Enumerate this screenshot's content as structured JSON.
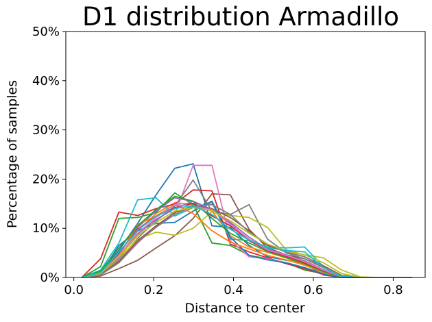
{
  "chart_data": {
    "type": "line",
    "title": "D1 distribution Armadillo",
    "xlabel": "Distance to center",
    "ylabel": "Percentage of samples",
    "xlim": [
      -0.02,
      0.88
    ],
    "ylim": [
      0,
      50
    ],
    "xticks": [
      0.0,
      0.2,
      0.4,
      0.6,
      0.8
    ],
    "xtick_labels": [
      "0.0",
      "0.2",
      "0.4",
      "0.6",
      "0.8"
    ],
    "yticks": [
      0,
      10,
      20,
      30,
      40,
      50
    ],
    "ytick_labels": [
      "0%",
      "10%",
      "20%",
      "30%",
      "40%",
      "50%"
    ],
    "grid": false,
    "legend": "none",
    "x": [
      0.02,
      0.067,
      0.113,
      0.16,
      0.206,
      0.253,
      0.299,
      0.346,
      0.392,
      0.439,
      0.485,
      0.532,
      0.578,
      0.625,
      0.671,
      0.718,
      0.764,
      0.811,
      0.848
    ],
    "series": [
      {
        "color": "#1f77b4",
        "values": [
          0,
          1.2,
          5.5,
          11,
          16.8,
          22.2,
          23.1,
          10.5,
          10.2,
          6.5,
          4.2,
          3.5,
          2.8,
          0.5,
          0,
          0,
          0,
          0,
          0
        ]
      },
      {
        "color": "#ff7f0e",
        "values": [
          0,
          0.8,
          4.2,
          9.5,
          13,
          15.2,
          14.8,
          13.5,
          8.5,
          6.2,
          5.1,
          4,
          2.5,
          1.2,
          0.2,
          0,
          0,
          0,
          0
        ]
      },
      {
        "color": "#2ca02c",
        "values": [
          0,
          2.2,
          12,
          12.2,
          13.2,
          17.2,
          14.8,
          7,
          6.5,
          4.5,
          3.8,
          3,
          1.5,
          0.8,
          0,
          0,
          0,
          0,
          0
        ]
      },
      {
        "color": "#d62728",
        "values": [
          0,
          3.8,
          13.3,
          12.6,
          14,
          14.9,
          17.8,
          17.6,
          6.8,
          5.2,
          4,
          2.8,
          1.8,
          0.6,
          0,
          0,
          0,
          0,
          0
        ]
      },
      {
        "color": "#9467bd",
        "values": [
          0,
          1,
          4.8,
          10.2,
          13.5,
          16.2,
          15.5,
          13.8,
          11,
          7.5,
          5.5,
          4.2,
          3.2,
          1.5,
          0.2,
          0,
          0,
          0,
          0
        ]
      },
      {
        "color": "#8c564b",
        "values": [
          0,
          0.3,
          1.8,
          3.5,
          6,
          8.5,
          12,
          17,
          16.8,
          9.8,
          6,
          4.6,
          3.8,
          2,
          0.3,
          0,
          0,
          0,
          0
        ]
      },
      {
        "color": "#e377c2",
        "values": [
          0,
          0.6,
          3,
          7,
          10.5,
          12.8,
          22.8,
          22.8,
          7.5,
          4.2,
          3.8,
          3,
          2,
          0.8,
          0,
          0,
          0,
          0,
          0
        ]
      },
      {
        "color": "#7f7f7f",
        "values": [
          0,
          0.5,
          3.5,
          8,
          11.5,
          14.5,
          19.8,
          13.5,
          12.8,
          14.8,
          7.8,
          5,
          3.8,
          2,
          0.2,
          0,
          0,
          0,
          0
        ]
      },
      {
        "color": "#bcbd22",
        "values": [
          0,
          0.7,
          3.8,
          7.8,
          9.2,
          8.6,
          10,
          13.4,
          12.6,
          12.2,
          10.2,
          5.6,
          4.6,
          4,
          1.5,
          0.1,
          0,
          0,
          0
        ]
      },
      {
        "color": "#17becf",
        "values": [
          0,
          1.5,
          7,
          15.8,
          16.2,
          12.5,
          14.2,
          15.2,
          7.8,
          7.5,
          6.2,
          6,
          6.2,
          2.2,
          0.3,
          0,
          0,
          0,
          0
        ]
      },
      {
        "color": "#1f77b4",
        "values": [
          0,
          0.8,
          6.5,
          9.5,
          11,
          11.2,
          13.5,
          15.5,
          8.2,
          4.5,
          3.6,
          3,
          2,
          0.7,
          0,
          0,
          0,
          0,
          0
        ]
      },
      {
        "color": "#ff7f0e",
        "values": [
          0,
          0.9,
          4.5,
          10.8,
          12.5,
          14.8,
          13,
          9.5,
          7.2,
          5.8,
          4.5,
          3.6,
          2.5,
          1,
          0.1,
          0,
          0,
          0,
          0
        ]
      },
      {
        "color": "#2ca02c",
        "values": [
          0,
          1.3,
          6,
          10.5,
          13.8,
          16.5,
          15.5,
          12,
          9,
          7,
          5.3,
          4,
          2.8,
          1.2,
          0.1,
          0,
          0,
          0,
          0
        ]
      },
      {
        "color": "#d62728",
        "values": [
          0,
          1,
          5,
          9.8,
          12.5,
          14.2,
          15.1,
          12.5,
          10.5,
          7.5,
          5.5,
          4.3,
          3,
          1.4,
          0.2,
          0,
          0,
          0,
          0
        ]
      },
      {
        "color": "#9467bd",
        "values": [
          0,
          0.7,
          4,
          8.8,
          11.8,
          14,
          15.5,
          13.6,
          11.2,
          8.2,
          5.8,
          4.6,
          3.4,
          1.6,
          0.2,
          0,
          0,
          0,
          0
        ]
      },
      {
        "color": "#8c564b",
        "values": [
          0,
          0.6,
          3.2,
          7.5,
          10.5,
          13.2,
          14.5,
          14,
          12.2,
          9.5,
          6.5,
          5.2,
          4.2,
          2.4,
          0.4,
          0,
          0,
          0,
          0
        ]
      },
      {
        "color": "#e377c2",
        "values": [
          0,
          0.8,
          4.5,
          9,
          12.2,
          14.8,
          14.5,
          13.8,
          10.8,
          7.8,
          5.6,
          4.5,
          3.2,
          1.5,
          0.2,
          0,
          0,
          0,
          0
        ]
      },
      {
        "color": "#7f7f7f",
        "values": [
          0,
          0.5,
          3,
          7.2,
          10.2,
          12.8,
          14.5,
          14.8,
          12.8,
          9.2,
          6.8,
          5.2,
          4.2,
          2.2,
          0.3,
          0,
          0,
          0,
          0
        ]
      },
      {
        "color": "#bcbd22",
        "values": [
          0,
          0.8,
          4.2,
          8.5,
          11.2,
          13.5,
          14.2,
          13.6,
          11.5,
          9,
          6.8,
          5.4,
          4.6,
          3,
          0.8,
          0,
          0,
          0,
          0
        ]
      },
      {
        "color": "#17becf",
        "values": [
          0,
          1,
          5.2,
          9.6,
          12.5,
          14,
          14.6,
          12.8,
          9.8,
          7.6,
          6,
          5.5,
          5.2,
          2,
          0.2,
          0,
          0,
          0,
          0
        ]
      }
    ]
  }
}
